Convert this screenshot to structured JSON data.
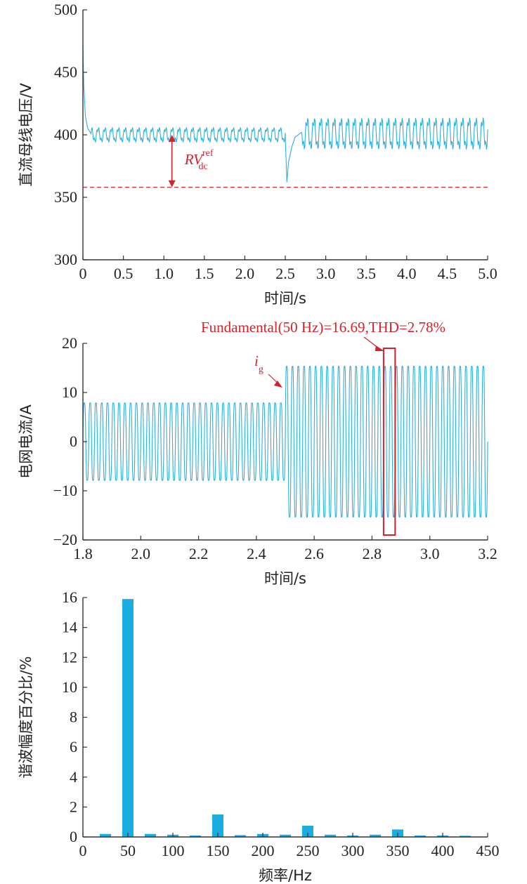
{
  "colors": {
    "signal": "#2ab0de",
    "annotation": "#d6202a",
    "bar": "#1aaee0",
    "axis": "#333333"
  },
  "chart_data": [
    {
      "type": "line",
      "xlabel": "时间/s",
      "ylabel": "直流母线电压/V",
      "xlim": [
        0,
        5.0
      ],
      "ylim": [
        300,
        500
      ],
      "xticks": [
        "0",
        "0.5",
        "1.0",
        "1.5",
        "2.0",
        "2.5",
        "3.0",
        "3.5",
        "4.0",
        "4.5",
        "5.0"
      ],
      "yticks": [
        "300",
        "350",
        "400",
        "450",
        "500"
      ],
      "series": [
        {
          "segment": "startup",
          "t": [
            0.0,
            0.01,
            0.03,
            0.06,
            0.1
          ],
          "v": [
            472,
            440,
            415,
            405,
            401
          ]
        },
        {
          "segment": "steady1",
          "t_start": 0.1,
          "t_end": 2.5,
          "mean": 400,
          "ripple": 5,
          "freq_hz": 12
        },
        {
          "segment": "transient",
          "t": [
            2.5,
            2.52,
            2.54,
            2.58,
            2.62,
            2.7
          ],
          "v": [
            398,
            362,
            378,
            390,
            398,
            402
          ]
        },
        {
          "segment": "steady2",
          "t_start": 2.7,
          "t_end": 5.0,
          "mean": 401,
          "ripple": 11,
          "freq_hz": 12
        }
      ],
      "reference_line": 358,
      "annotation": {
        "text_main": "RV",
        "text_sub": "dc",
        "text_sup": "ref",
        "x": 1.1,
        "y_from": 400,
        "y_to": 358
      }
    },
    {
      "type": "line",
      "xlabel": "时间/s",
      "ylabel": "电网电流/A",
      "xlim": [
        1.8,
        3.2
      ],
      "ylim": [
        -20,
        20
      ],
      "xticks": [
        "1.8",
        "2.0",
        "2.2",
        "2.4",
        "2.6",
        "2.8",
        "3.0",
        "3.2"
      ],
      "yticks": [
        "−20",
        "−10",
        "0",
        "10",
        "20"
      ],
      "series": [
        {
          "segment": "before",
          "t_start": 1.8,
          "t_end": 2.5,
          "amplitude": 9,
          "freq_hz": 50
        },
        {
          "segment": "after",
          "t_start": 2.5,
          "t_end": 3.2,
          "amplitude": 17.5,
          "freq_hz": 50
        }
      ],
      "annotation_label_main": "i",
      "annotation_label_sub": "g",
      "label_point": {
        "x": 2.49,
        "y": 11
      },
      "fft_text": "Fundamental(50 Hz)=16.69,THD=2.78%",
      "window": {
        "x0": 2.84,
        "x1": 2.88,
        "y0": -19,
        "y1": 19
      }
    },
    {
      "type": "bar",
      "xlabel": "频率/Hz",
      "ylabel": "谐波幅度百分比/%",
      "xlim": [
        0,
        450
      ],
      "ylim": [
        0,
        16
      ],
      "xticks": [
        "0",
        "50",
        "100",
        "150",
        "200",
        "250",
        "300",
        "350",
        "400",
        "450"
      ],
      "yticks": [
        "0",
        "2",
        "4",
        "6",
        "8",
        "10",
        "12",
        "14",
        "16"
      ],
      "x": [
        25,
        50,
        75,
        100,
        125,
        150,
        175,
        200,
        225,
        250,
        275,
        300,
        325,
        350,
        375,
        400,
        425
      ],
      "values": [
        0.2,
        15.9,
        0.2,
        0.15,
        0.1,
        1.5,
        0.12,
        0.2,
        0.15,
        0.75,
        0.15,
        0.1,
        0.15,
        0.5,
        0.1,
        0.1,
        0.08
      ]
    }
  ]
}
